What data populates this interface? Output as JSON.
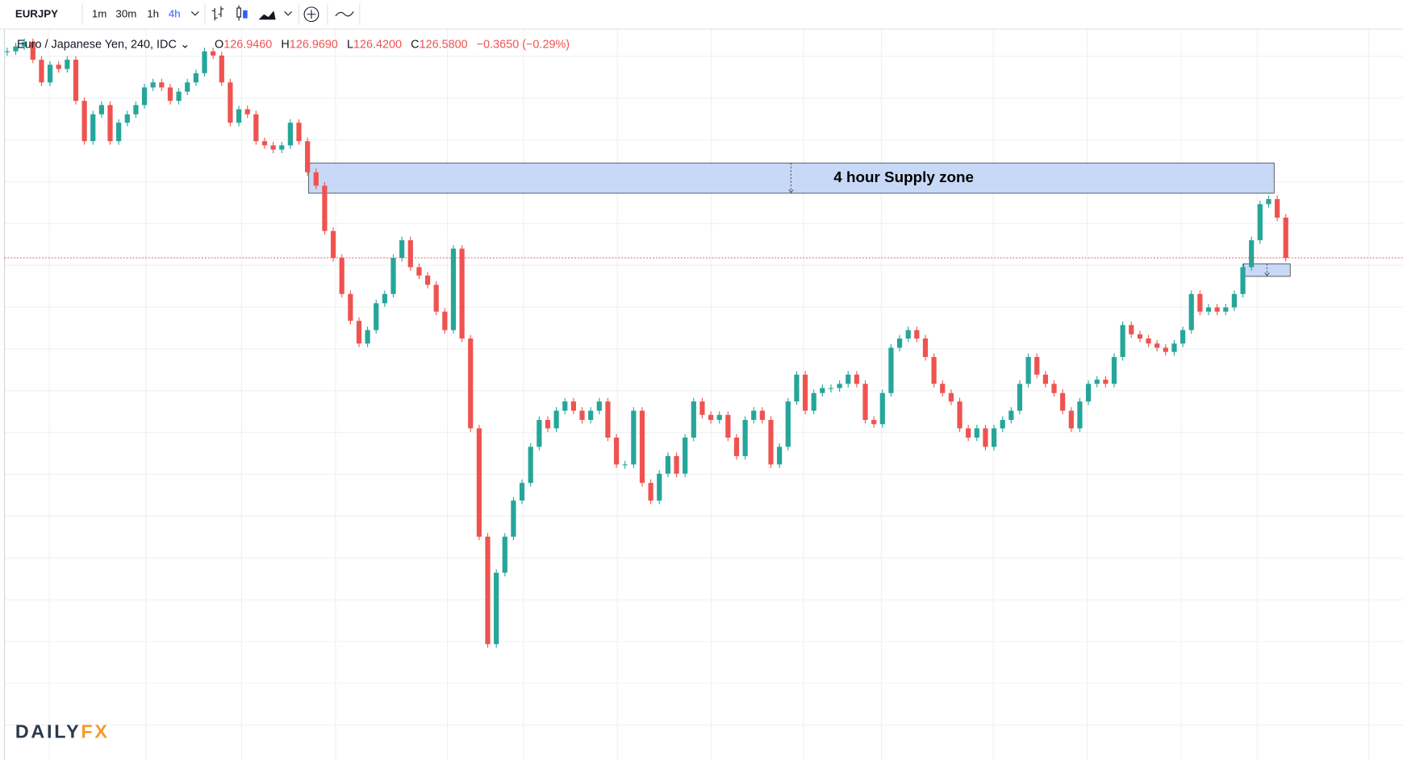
{
  "toolbar": {
    "symbol": "EURJPY",
    "intervals": [
      "1m",
      "30m",
      "1h",
      "4h"
    ],
    "active_interval": "4h"
  },
  "legend": {
    "name": "Euro / Japanese Yen, 240, IDC",
    "ohlc": [
      {
        "key": "O",
        "value": "126.9460"
      },
      {
        "key": "H",
        "value": "126.9690"
      },
      {
        "key": "L",
        "value": "126.4200"
      },
      {
        "key": "C",
        "value": "126.5800"
      }
    ],
    "change": "−0.3650 (−0.29%)"
  },
  "chart_data": {
    "type": "candlestick",
    "closes": [
      129.04,
      129.1,
      129.15,
      128.94,
      128.67,
      128.88,
      128.83,
      128.94,
      128.45,
      127.97,
      128.29,
      128.4,
      127.97,
      128.19,
      128.29,
      128.4,
      128.61,
      128.67,
      128.61,
      128.45,
      128.56,
      128.67,
      128.78,
      129.04,
      128.99,
      128.67,
      128.19,
      128.35,
      128.29,
      127.97,
      127.92,
      127.87,
      127.92,
      128.19,
      127.97,
      127.6,
      127.44,
      126.9,
      126.58,
      126.15,
      125.83,
      125.56,
      125.72,
      126.04,
      126.15,
      126.58,
      126.79,
      126.47,
      126.37,
      126.26,
      125.94,
      125.72,
      126.69,
      125.62,
      124.55,
      123.26,
      121.98,
      122.83,
      123.26,
      123.69,
      123.9,
      124.33,
      124.65,
      124.55,
      124.76,
      124.87,
      124.76,
      124.65,
      124.76,
      124.87,
      124.44,
      124.12,
      124.12,
      124.76,
      123.9,
      123.69,
      124.01,
      124.22,
      124.01,
      124.44,
      124.87,
      124.71,
      124.65,
      124.71,
      124.44,
      124.22,
      124.65,
      124.76,
      124.65,
      124.12,
      124.33,
      124.87,
      125.19,
      124.76,
      124.97,
      125.03,
      125.03,
      125.08,
      125.19,
      125.08,
      124.65,
      124.6,
      124.97,
      125.51,
      125.62,
      125.72,
      125.62,
      125.4,
      125.08,
      124.97,
      124.87,
      124.55,
      124.44,
      124.55,
      124.33,
      124.55,
      124.65,
      124.76,
      125.08,
      125.4,
      125.19,
      125.08,
      124.97,
      124.76,
      124.55,
      124.87,
      125.08,
      125.13,
      125.08,
      125.4,
      125.78,
      125.67,
      125.62,
      125.56,
      125.51,
      125.46,
      125.56,
      125.72,
      126.15,
      125.94,
      125.99,
      125.94,
      125.99,
      126.15,
      126.47,
      126.79,
      127.22,
      127.28,
      127.06,
      126.58
    ],
    "ylim": [
      120.6,
      129.3
    ],
    "last_price": 126.58,
    "up_color": "#26a69a",
    "down_color": "#ef5350",
    "price_line_color": "#ef5350",
    "zones": [
      {
        "label": "4 hour Supply zone",
        "top": 127.71,
        "bottom": 127.35,
        "color": "#c5d6f7"
      },
      {
        "top": 126.51,
        "bottom": 126.36,
        "color": "#c5d6f7"
      }
    ]
  },
  "logo": {
    "left": "DAILY",
    "right": "FX"
  }
}
